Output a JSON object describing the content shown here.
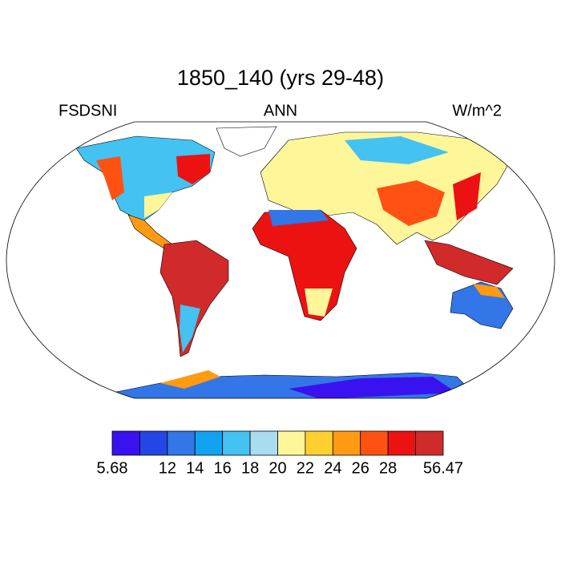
{
  "title": "1850_140 (yrs 29-48)",
  "left_label": "FSDSNI",
  "center_label": "ANN",
  "right_label": "W/m^2",
  "colorbar": {
    "colors": [
      "#3a12f0",
      "#2446e6",
      "#3276e8",
      "#12a2f2",
      "#44c2f2",
      "#aadcf0",
      "#fff69a",
      "#ffd030",
      "#ff9a12",
      "#ff5212",
      "#ec1212",
      "#d02a2a"
    ],
    "labels": [
      "5.68",
      "12",
      "14",
      "16",
      "18",
      "20",
      "22",
      "24",
      "26",
      "28",
      "56.47"
    ]
  }
}
